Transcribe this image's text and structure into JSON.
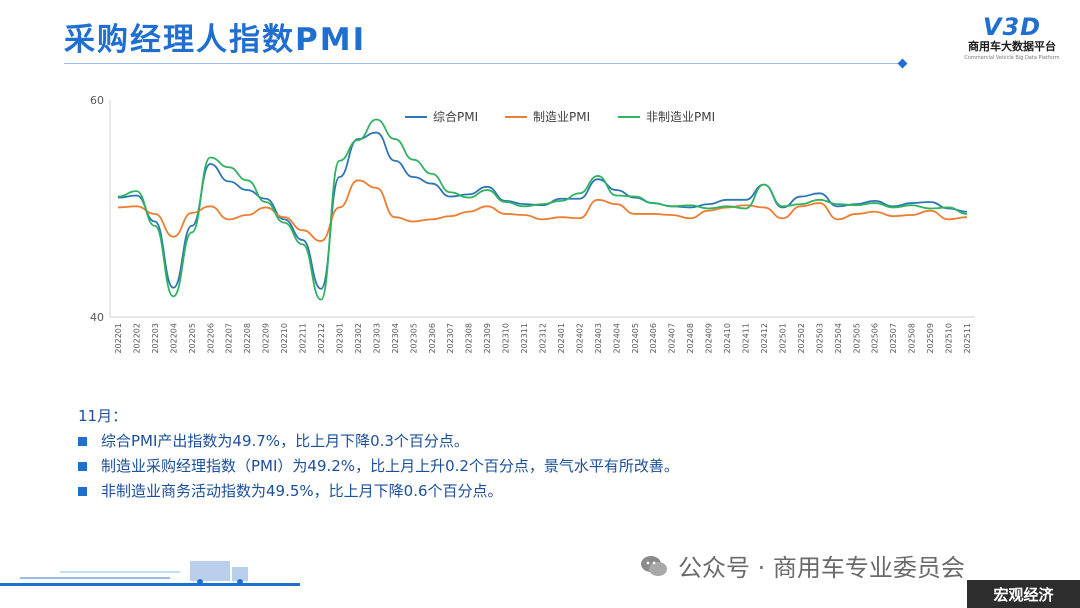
{
  "page": {
    "title": "采购经理人指数PMI",
    "logo_mark": "V3D",
    "logo_name": "商用车大数据平台",
    "logo_sub": "Commercial Vehicle Big Data Platform",
    "watermark": "公众号 · 商用车专业委员会",
    "tag": "宏观经济"
  },
  "notes": {
    "month": "11月：",
    "items": [
      "综合PMI产出指数为49.7%，比上月下降0.3个百分点。",
      "制造业采购经理指数（PMI）为49.2%，比上月上升0.2个百分点，景气水平有所改善。",
      "非制造业商务活动指数为49.5%，比上月下降0.6个百分点。"
    ]
  },
  "chart_data": {
    "type": "line",
    "title": "",
    "xlabel": "",
    "ylabel": "",
    "ylim": [
      40,
      60
    ],
    "yticks": [
      40,
      60
    ],
    "grid": false,
    "legend_position": "top-center",
    "categories": [
      "202201",
      "202202",
      "202203",
      "202204",
      "202205",
      "202206",
      "202207",
      "202208",
      "202209",
      "202210",
      "202211",
      "202212",
      "202301",
      "202302",
      "202303",
      "202304",
      "202305",
      "202306",
      "202307",
      "202308",
      "202309",
      "202310",
      "202311",
      "202312",
      "202401",
      "202402",
      "202403",
      "202404",
      "202405",
      "202406",
      "202407",
      "202408",
      "202409",
      "202410",
      "202411",
      "202412",
      "202501",
      "202502",
      "202503",
      "202504",
      "202505",
      "202506",
      "202507",
      "202508",
      "202509",
      "202510",
      "202511"
    ],
    "series": [
      {
        "name": "综合PMI",
        "color": "#2e75b6",
        "values": [
          51.0,
          51.2,
          48.8,
          42.7,
          48.4,
          54.1,
          52.5,
          51.7,
          50.9,
          49.0,
          47.1,
          42.6,
          52.9,
          56.4,
          57.0,
          54.4,
          52.9,
          52.3,
          51.1,
          51.3,
          52.0,
          50.7,
          50.4,
          50.3,
          50.9,
          50.9,
          52.7,
          51.7,
          51.0,
          50.5,
          50.2,
          50.1,
          50.4,
          50.8,
          50.8,
          52.2,
          50.1,
          51.1,
          51.4,
          50.2,
          50.4,
          50.7,
          50.2,
          50.5,
          50.6,
          50.0,
          49.7
        ]
      },
      {
        "name": "制造业PMI",
        "color": "#ed7d31",
        "values": [
          50.1,
          50.2,
          49.5,
          47.4,
          49.6,
          50.2,
          49.0,
          49.4,
          50.1,
          49.2,
          48.0,
          47.0,
          50.1,
          52.6,
          51.9,
          49.2,
          48.8,
          49.0,
          49.3,
          49.7,
          50.2,
          49.5,
          49.4,
          49.0,
          49.2,
          49.1,
          50.8,
          50.4,
          49.5,
          49.5,
          49.4,
          49.1,
          49.8,
          50.1,
          50.3,
          50.1,
          49.1,
          50.2,
          50.5,
          49.0,
          49.5,
          49.7,
          49.3,
          49.4,
          49.8,
          49.0,
          49.2
        ]
      },
      {
        "name": "非制造业PMI",
        "color": "#2fb360",
        "values": [
          51.1,
          51.6,
          48.4,
          41.9,
          47.8,
          54.7,
          53.8,
          52.6,
          50.6,
          48.7,
          46.7,
          41.6,
          54.4,
          56.3,
          58.2,
          56.4,
          54.5,
          53.2,
          51.5,
          51.0,
          51.7,
          50.6,
          50.2,
          50.4,
          50.7,
          51.4,
          53.0,
          51.2,
          51.1,
          50.5,
          50.2,
          50.3,
          50.0,
          50.2,
          50.0,
          52.2,
          50.2,
          50.4,
          50.8,
          50.4,
          50.3,
          50.5,
          50.1,
          50.3,
          50.0,
          50.1,
          49.5
        ]
      }
    ]
  }
}
